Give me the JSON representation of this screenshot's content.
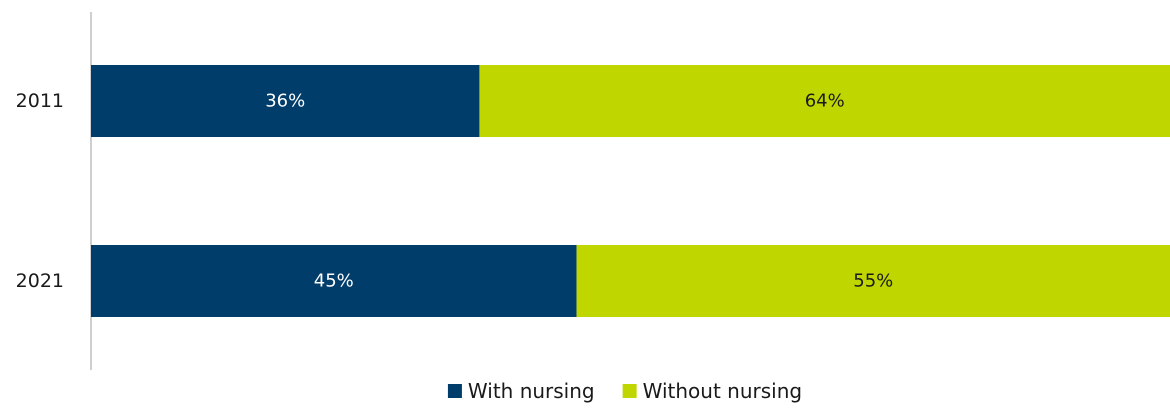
{
  "chart_data": {
    "type": "bar",
    "orientation": "horizontal",
    "stacked": true,
    "categories": [
      "2011",
      "2021"
    ],
    "series": [
      {
        "name": "With nursing",
        "values": [
          36,
          45
        ],
        "labels": [
          "36%",
          "45%"
        ],
        "color": "#003d6b",
        "label_color": "#ffffff"
      },
      {
        "name": "Without nursing",
        "values": [
          64,
          55
        ],
        "labels": [
          "64%",
          "55%"
        ],
        "color": "#bfd600",
        "label_color": "#1a1a1a"
      }
    ],
    "xlim": [
      0,
      100
    ],
    "grid": false,
    "legend_position": "bottom-center",
    "axis_color": "#bfbfbf"
  }
}
